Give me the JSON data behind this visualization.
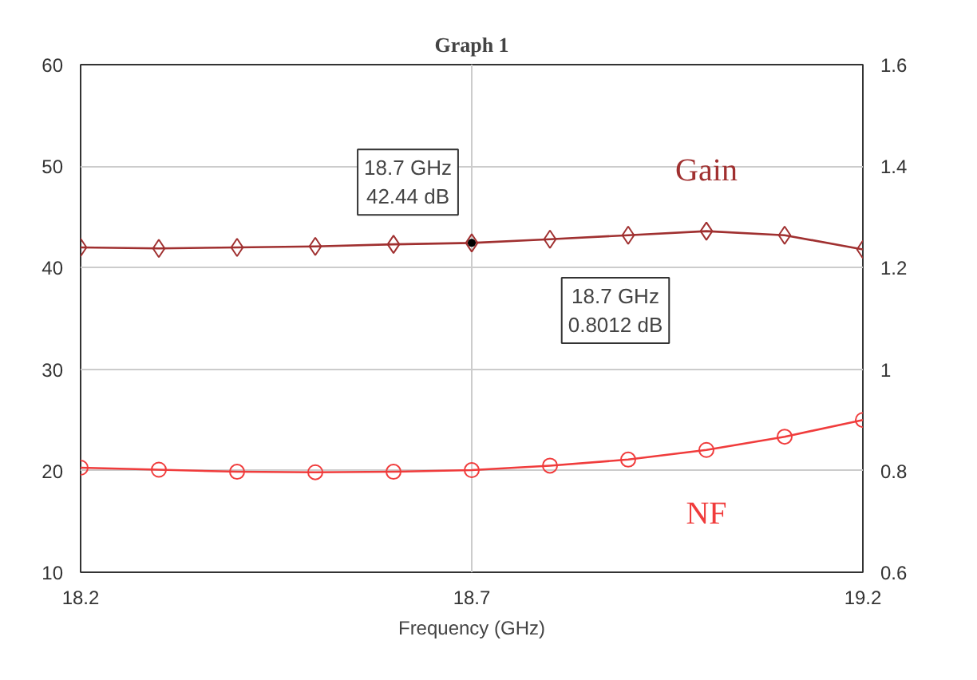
{
  "chart_data": {
    "type": "line",
    "title": "Graph 1",
    "xlabel": "Frequency (GHz)",
    "x": [
      18.2,
      18.3,
      18.4,
      18.5,
      18.6,
      18.7,
      18.8,
      18.9,
      19.0,
      19.1,
      19.2
    ],
    "xlim": [
      18.2,
      19.2
    ],
    "xticks": [
      18.2,
      18.7,
      19.2
    ],
    "ylim": [
      10,
      60
    ],
    "yticks": [
      10,
      20,
      30,
      40,
      50,
      60
    ],
    "y2lim": [
      0.6,
      1.6
    ],
    "y2ticks": [
      0.6,
      0.8,
      1,
      1.2,
      1.4,
      1.6
    ],
    "grid": true,
    "series": [
      {
        "name": "Gain",
        "color": "#a03030",
        "marker": "diamond",
        "values": [
          42.0,
          41.9,
          42.0,
          42.1,
          42.3,
          42.44,
          42.8,
          43.2,
          43.6,
          43.2,
          41.8
        ]
      },
      {
        "name": "NF",
        "color": "#f03c3c",
        "marker": "circle",
        "axis": "y2",
        "values": [
          0.806,
          0.802,
          0.798,
          0.797,
          0.798,
          0.8012,
          0.81,
          0.822,
          0.841,
          0.867,
          0.9
        ]
      }
    ],
    "annotations": [
      {
        "text": "18.7 GHz\n42.44 dB",
        "x": 18.7,
        "y": 42.44
      },
      "18.7 GHz\n0.8012 dB"
    ]
  }
}
